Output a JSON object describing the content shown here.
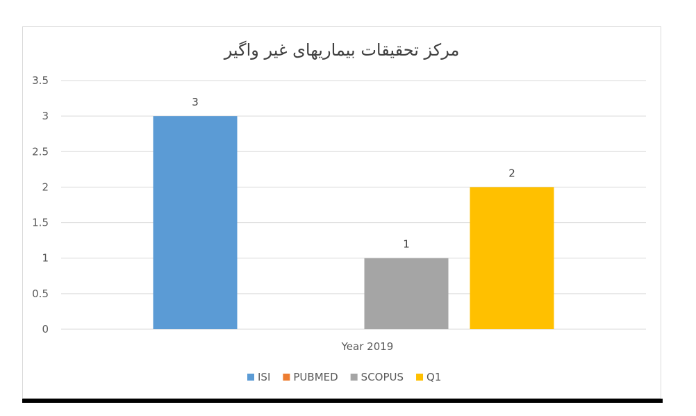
{
  "chart_data": {
    "type": "bar",
    "title": "مرکز تحقیقات بیماریهای غیر واگیر",
    "categories": [
      "Year 2019"
    ],
    "series": [
      {
        "name": "ISI",
        "values": [
          3
        ],
        "color": "#5b9bd5"
      },
      {
        "name": "PUBMED",
        "values": [
          0
        ],
        "color": "#ed7d31"
      },
      {
        "name": "SCOPUS",
        "values": [
          1
        ],
        "color": "#a5a5a5"
      },
      {
        "name": "Q1",
        "values": [
          2
        ],
        "color": "#ffc000"
      }
    ],
    "ylim": [
      0,
      3.5
    ],
    "yticks": [
      "0",
      "0.5",
      "1",
      "1.5",
      "2",
      "2.5",
      "3",
      "3.5"
    ],
    "data_labels": [
      "3",
      "",
      "1",
      "2"
    ],
    "grid": true,
    "legend": "bottom"
  }
}
